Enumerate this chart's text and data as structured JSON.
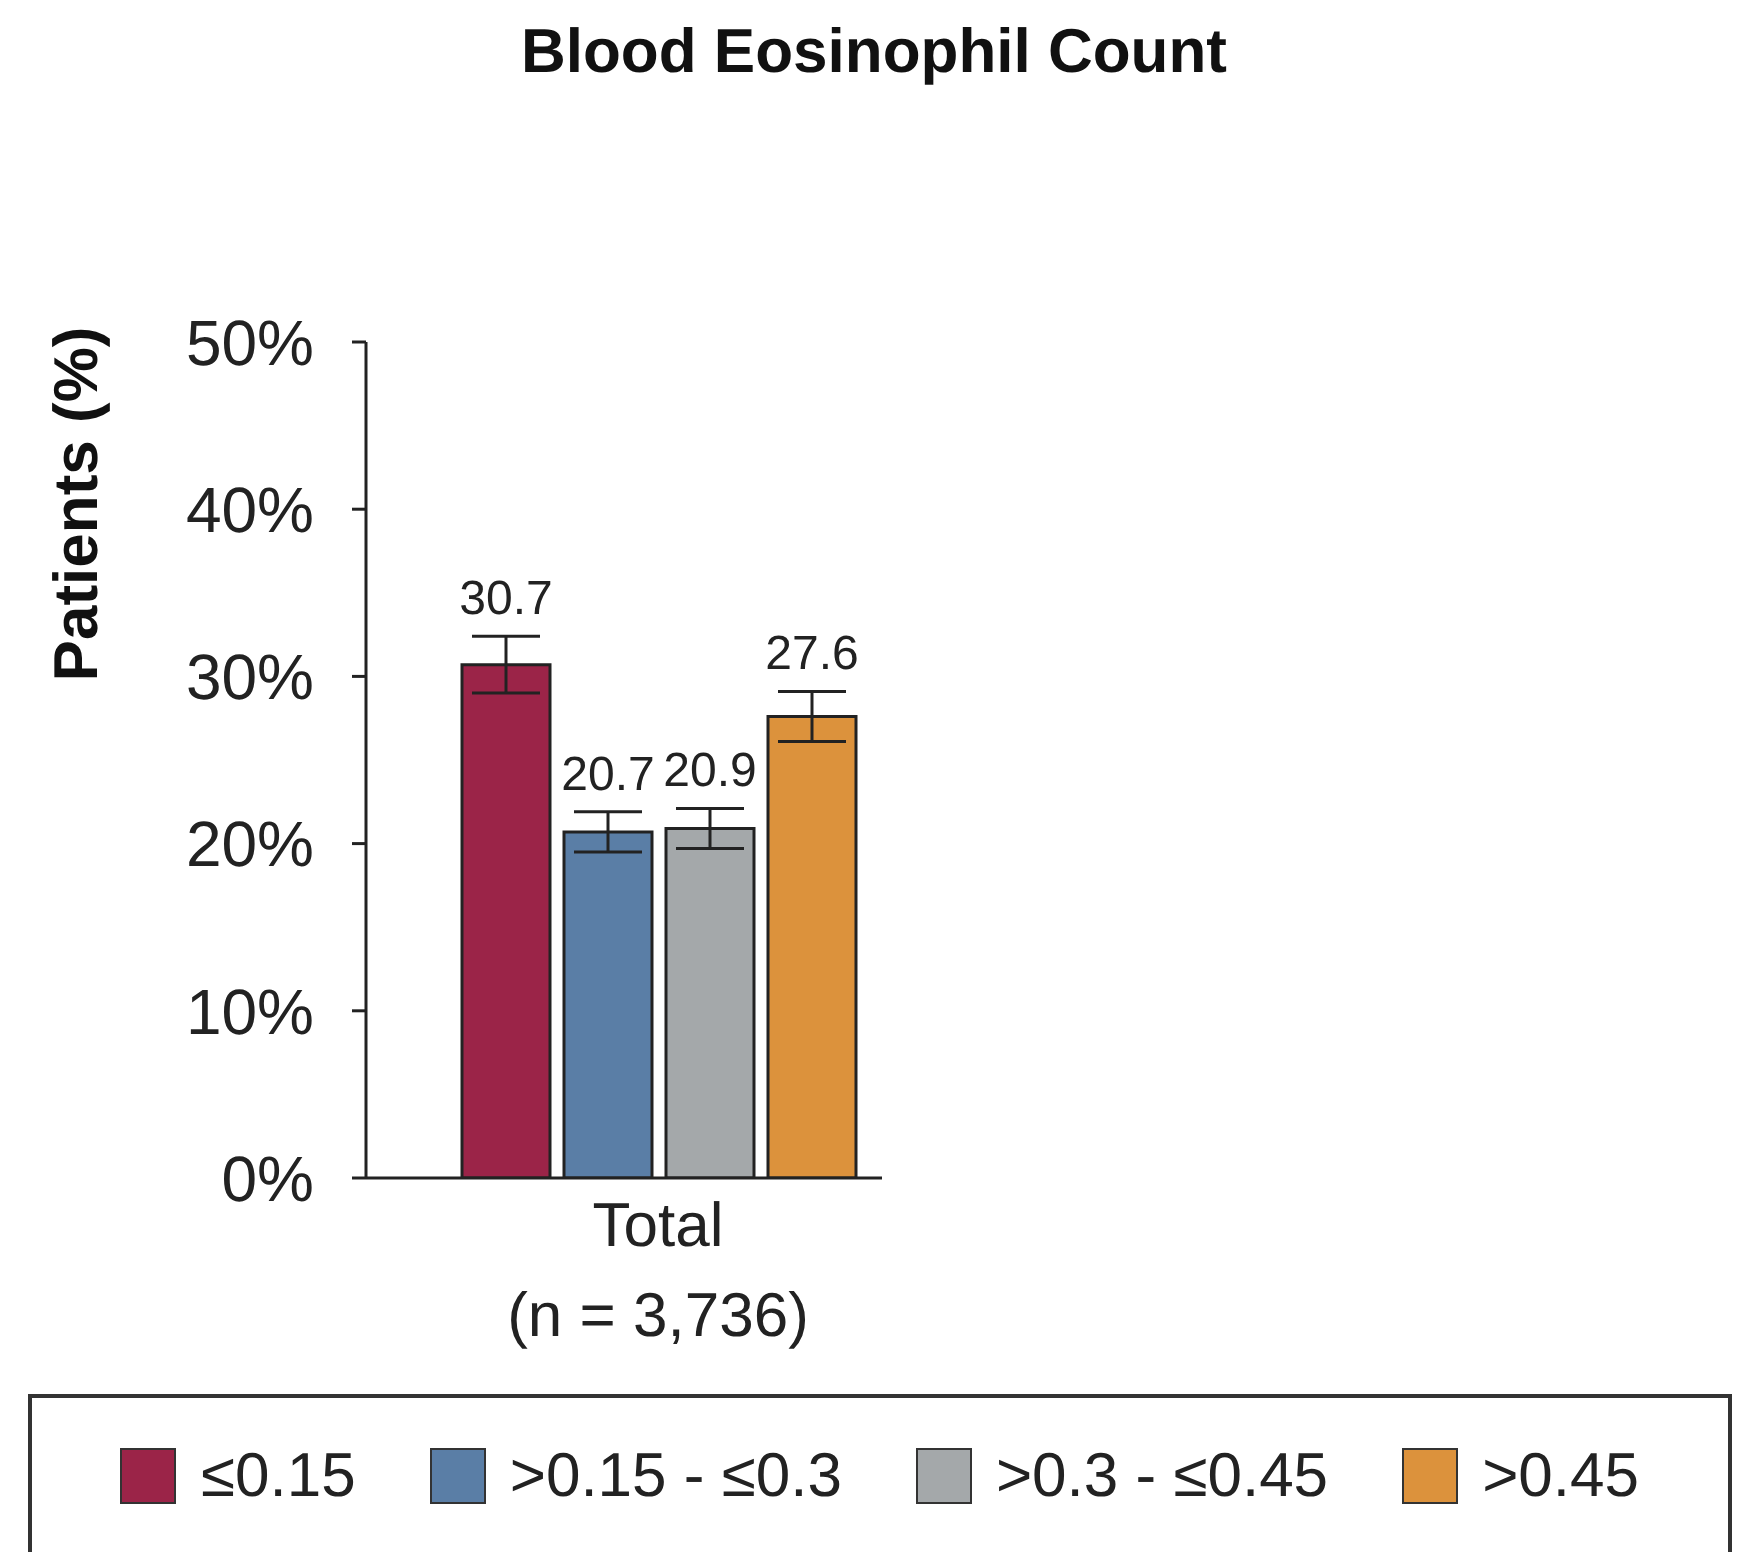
{
  "chart_data": {
    "type": "bar",
    "title": "Blood Eosinophil Count",
    "ylabel": "Patients (%)",
    "categories": [
      "Total\n(n = 3,736)"
    ],
    "series": [
      {
        "name": "≤0.15",
        "color": "#9b2448",
        "values": [
          30.7
        ],
        "errors": [
          1.7
        ]
      },
      {
        "name": ">0.15 - ≤0.3",
        "color": "#5a7ea6",
        "values": [
          20.7
        ],
        "errors": [
          1.2
        ]
      },
      {
        "name": ">0.3 - ≤0.45",
        "color": "#a4a8aa",
        "values": [
          20.9
        ],
        "errors": [
          1.2
        ]
      },
      {
        "name": ">0.45",
        "color": "#dc923c",
        "values": [
          27.6
        ],
        "errors": [
          1.5
        ]
      }
    ],
    "ylim": [
      0,
      50
    ],
    "yticks": [
      {
        "value": 0,
        "label": "0%"
      },
      {
        "value": 10,
        "label": "10%"
      },
      {
        "value": 20,
        "label": "20%"
      },
      {
        "value": 30,
        "label": "30%"
      },
      {
        "value": 40,
        "label": "40%"
      },
      {
        "value": 50,
        "label": "50%"
      }
    ],
    "data_labels": true,
    "legend": "bottom"
  }
}
